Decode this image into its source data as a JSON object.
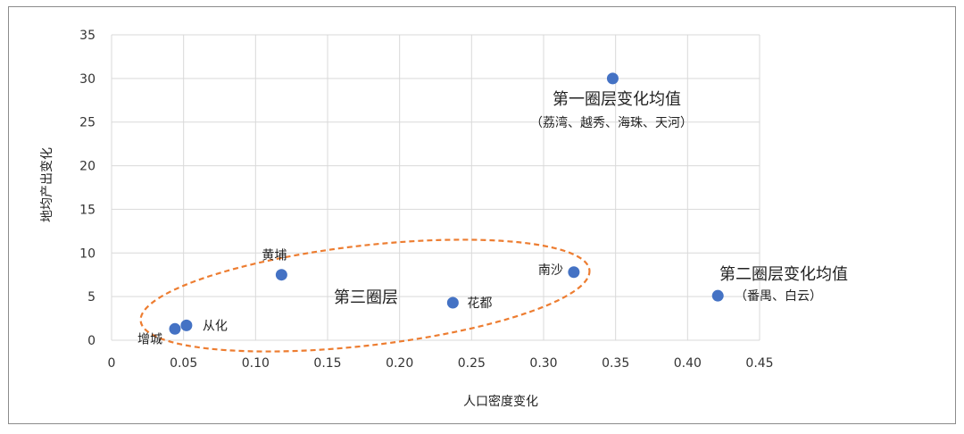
{
  "chart_data": {
    "type": "scatter",
    "xlabel": "人口密度变化",
    "ylabel": "地均产出变化",
    "xlim": [
      0,
      0.45
    ],
    "ylim": [
      0,
      35
    ],
    "x_ticks": [
      "0",
      "0.05",
      "0.10",
      "0.15",
      "0.20",
      "0.25",
      "0.30",
      "0.35",
      "0.40",
      "0.45"
    ],
    "y_ticks": [
      "0",
      "5",
      "10",
      "15",
      "20",
      "25",
      "30",
      "35"
    ],
    "grid": true,
    "point_color": "#4472c4",
    "points": [
      {
        "label": "增城",
        "x": 0.044,
        "y": 1.3
      },
      {
        "label": "从化",
        "x": 0.052,
        "y": 1.7
      },
      {
        "label": "黄埔",
        "x": 0.118,
        "y": 7.5
      },
      {
        "label": "花都",
        "x": 0.237,
        "y": 4.3
      },
      {
        "label": "南沙",
        "x": 0.321,
        "y": 7.8
      },
      {
        "label": "第一圈层变化均值",
        "x": 0.348,
        "y": 30.0
      },
      {
        "label": "第二圈层变化均值",
        "x": 0.421,
        "y": 5.1
      }
    ],
    "annotations": {
      "ring1_title": "第一圈层变化均值",
      "ring1_sub": "（荔湾、越秀、海珠、天河）",
      "ring2_title": "第二圈层变化均值",
      "ring2_sub": "（番禺、白云）",
      "ring3_title": "第三圈层"
    },
    "ellipse_color": "#ed7d31"
  }
}
